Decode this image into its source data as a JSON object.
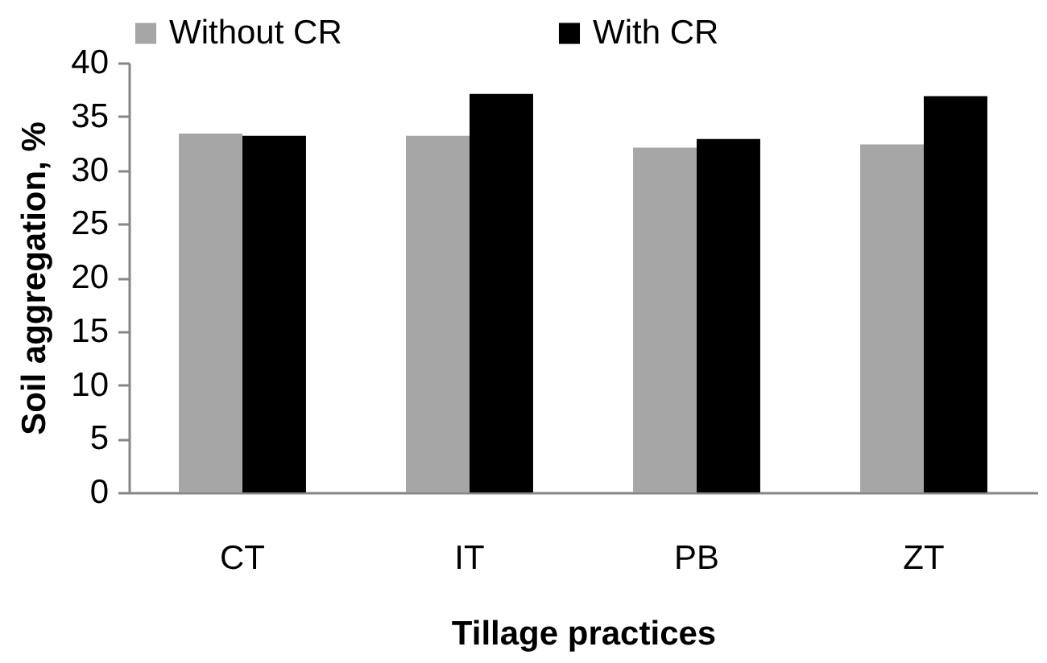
{
  "chart_data": {
    "type": "bar",
    "xlabel": "Tillage practices",
    "ylabel": "Soil aggregation, %",
    "categories": [
      "CT",
      "IT",
      "PB",
      "ZT"
    ],
    "series": [
      {
        "name": "Without CR",
        "color": "#a6a6a6",
        "values": [
          33.4,
          33.2,
          32.1,
          32.4
        ]
      },
      {
        "name": "With CR",
        "color": "#000000",
        "values": [
          33.2,
          37.1,
          32.9,
          36.9
        ]
      }
    ],
    "ylim": [
      0,
      40
    ],
    "yticks": [
      0,
      5,
      10,
      15,
      20,
      25,
      30,
      35,
      40
    ],
    "grid": false,
    "legend": "top"
  }
}
